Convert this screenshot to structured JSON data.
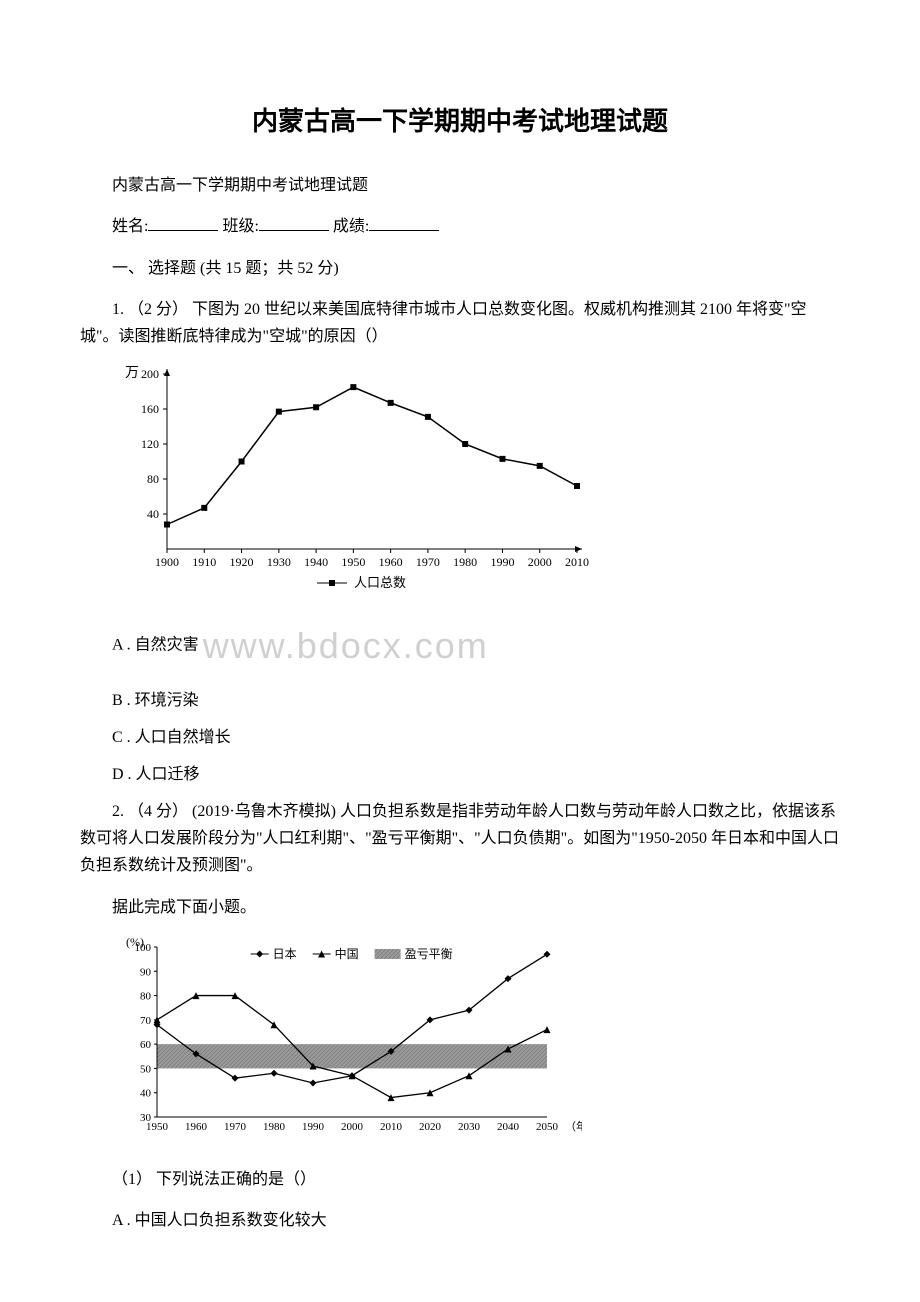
{
  "title": "内蒙古高一下学期期中考试地理试题",
  "subtitle": "内蒙古高一下学期期中考试地理试题",
  "info": {
    "name_label": "姓名:",
    "class_label": "班级:",
    "score_label": "成绩:"
  },
  "section": "一、 选择题 (共 15 题；共 52 分)",
  "q1": {
    "stem": "1. （2 分） 下图为 20 世纪以来美国底特律市城市人口总数变化图。权威机构推测其 2100 年将变\"空城\"。读图推断底特律成为\"空城\"的原因（）",
    "optA": "A . 自然灾害",
    "optB": "B . 环境污染",
    "optC": "C . 人口自然增长",
    "optD": "D . 人口迁移",
    "chart": {
      "type": "line",
      "y_unit": "万",
      "ylim": [
        0,
        200
      ],
      "ytick_step": 40,
      "xticks": [
        1900,
        1910,
        1920,
        1930,
        1940,
        1950,
        1960,
        1970,
        1980,
        1990,
        2000,
        2010
      ],
      "series_label": "人口总数",
      "values": [
        28,
        47,
        100,
        157,
        162,
        185,
        167,
        151,
        120,
        103,
        95,
        72
      ],
      "line_color": "#000000",
      "marker": "square",
      "marker_size": 6,
      "background": "#ffffff",
      "font_size": 12
    }
  },
  "watermark": "www.bdocx.com",
  "q2": {
    "stem": "2. （4 分） (2019·乌鲁木齐模拟) 人口负担系数是指非劳动年龄人口数与劳动年龄人口数之比，依据该系数可将人口发展阶段分为\"人口红利期\"、\"盈亏平衡期\"、\"人口负债期\"。如图为\"1950-2050 年日本和中国人口负担系数统计及预测图\"。",
    "stem2": "据此完成下面小题。",
    "sub1": "（1） 下列说法正确的是（）",
    "sub1_optA": "A . 中国人口负担系数变化较大",
    "chart": {
      "type": "line",
      "y_unit": "(%)",
      "ylim": [
        30,
        100
      ],
      "ytick_step": 10,
      "xticks": [
        1950,
        1960,
        1970,
        1980,
        1990,
        2000,
        2010,
        2020,
        2030,
        2040,
        2050
      ],
      "x_unit": "（年）",
      "legend": {
        "japan": "日本",
        "china": "中国",
        "band": "盈亏平衡"
      },
      "japan": {
        "values": [
          68,
          56,
          46,
          48,
          44,
          47,
          57,
          70,
          74,
          87,
          97
        ],
        "marker": "diamond",
        "color": "#000000"
      },
      "china": {
        "values": [
          70,
          80,
          80,
          68,
          51,
          47,
          38,
          40,
          47,
          58,
          66
        ],
        "marker": "triangle",
        "color": "#000000"
      },
      "band": {
        "ymin": 50,
        "ymax": 60,
        "fill": "#9a9a9a",
        "pattern": "hatched"
      },
      "background": "#ffffff",
      "font_size": 11
    }
  }
}
